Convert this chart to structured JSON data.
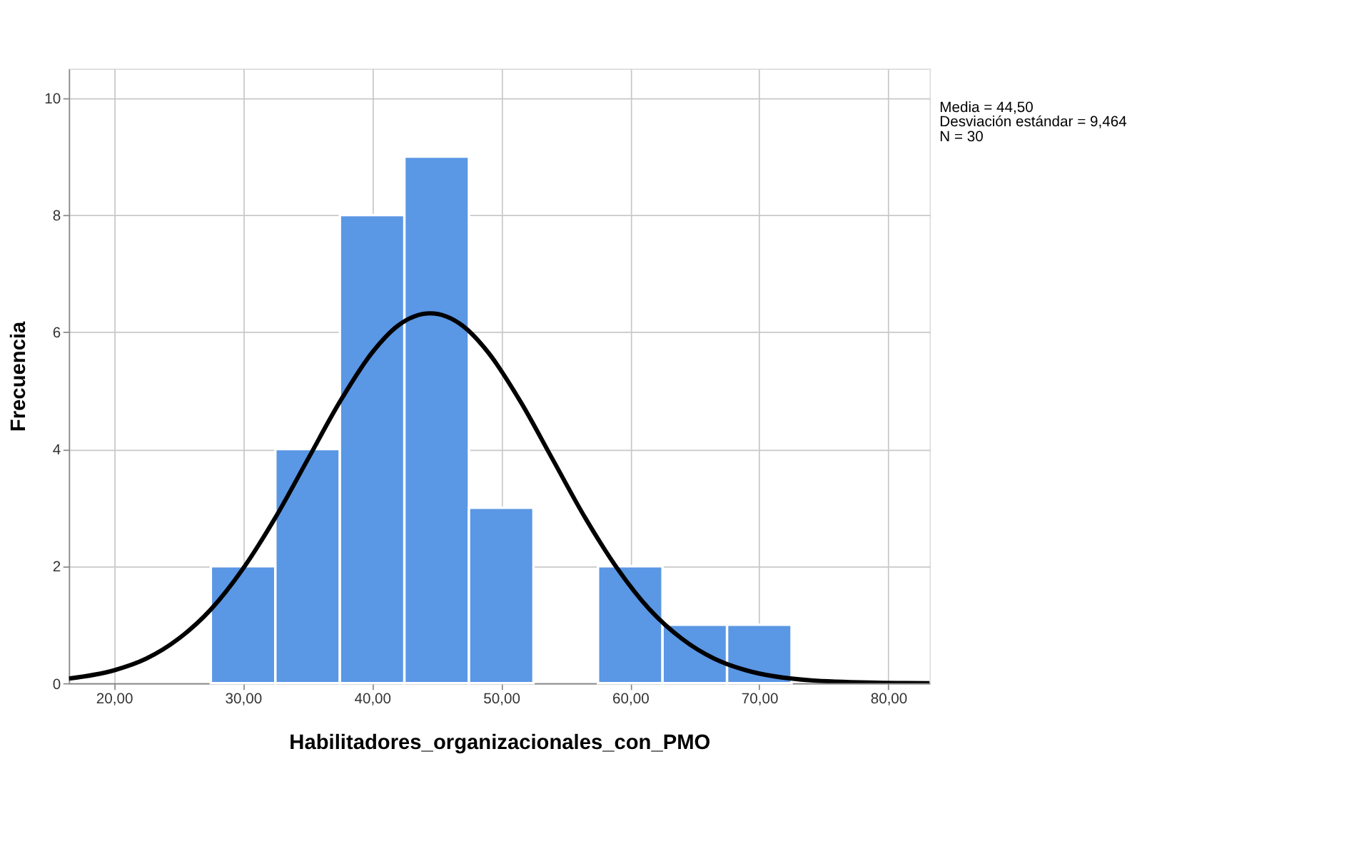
{
  "chart_data": {
    "type": "histogram",
    "xlabel": "Habilitadores_organizacionales_con_PMO",
    "ylabel": "Frecuencia",
    "bins": [
      27.5,
      32.5,
      37.5,
      42.5,
      47.5,
      52.5,
      57.5,
      62.5,
      67.5,
      72.5
    ],
    "values": [
      2,
      4,
      8,
      9,
      3,
      0,
      2,
      1,
      1
    ],
    "color": "#5a97e5",
    "series": [
      {
        "type": "line",
        "color": "#000000",
        "x": [
          16.5,
          20,
          22.5,
          25,
          27.5,
          30,
          32.5,
          35,
          37.5,
          40,
          42,
          44.5,
          47,
          49,
          51.5,
          54,
          56.5,
          59,
          61.5,
          64,
          66.5,
          69,
          74,
          79,
          83.2
        ],
        "values": [
          0.08,
          0.22,
          0.42,
          0.76,
          1.26,
          1.96,
          2.83,
          3.82,
          4.81,
          5.65,
          6.11,
          6.32,
          6.11,
          5.65,
          4.81,
          3.82,
          2.83,
          1.96,
          1.26,
          0.76,
          0.42,
          0.22,
          0.05,
          0.01,
          0.0
        ]
      }
    ],
    "xlim": [
      16.5,
      83.2
    ],
    "ylim": [
      0,
      10.5
    ],
    "xticks": [
      {
        "value": 20,
        "label": "20,00"
      },
      {
        "value": 30,
        "label": "30,00"
      },
      {
        "value": 40,
        "label": "40,00"
      },
      {
        "value": 50,
        "label": "50,00"
      },
      {
        "value": 60,
        "label": "60,00"
      },
      {
        "value": 70,
        "label": "70,00"
      },
      {
        "value": 80,
        "label": "80,00"
      }
    ],
    "yticks": [
      0,
      2,
      4,
      6,
      8,
      10
    ],
    "grid": true,
    "line_style": "solid",
    "marker": "none",
    "annotations": [
      "Media = 44,50",
      "Desviación estándar = 9,464",
      "N = 30"
    ]
  }
}
